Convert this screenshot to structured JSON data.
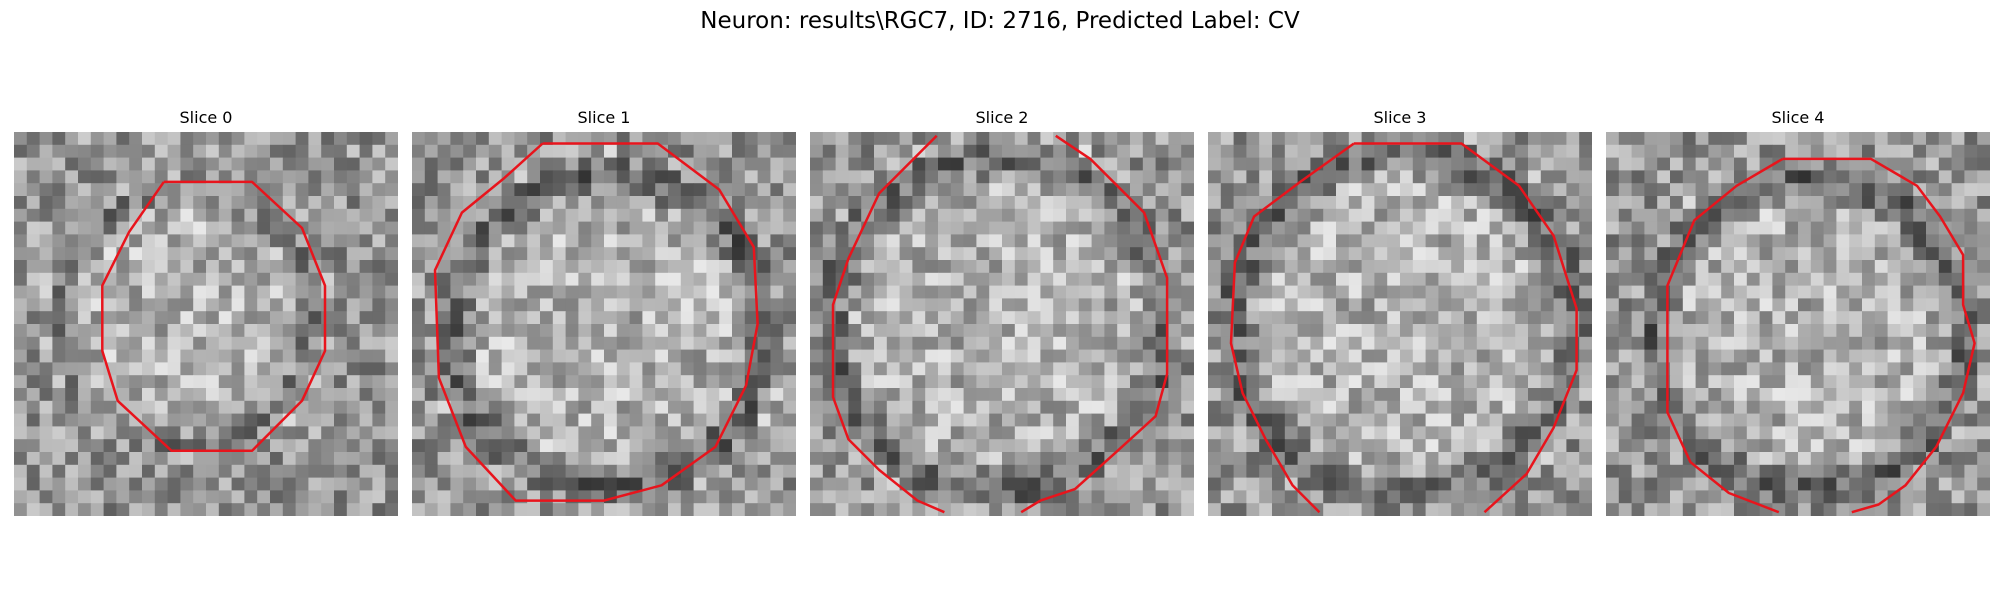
{
  "figure": {
    "title": "Neuron: results\\RGC7, ID: 2716, Predicted Label: CV"
  },
  "slices": [
    {
      "title": "Slice 0"
    },
    {
      "title": "Slice 1"
    },
    {
      "title": "Slice 2"
    },
    {
      "title": "Slice 3"
    },
    {
      "title": "Slice 4"
    }
  ],
  "colors": {
    "contour": "#e8141c",
    "background": "#ffffff"
  }
}
